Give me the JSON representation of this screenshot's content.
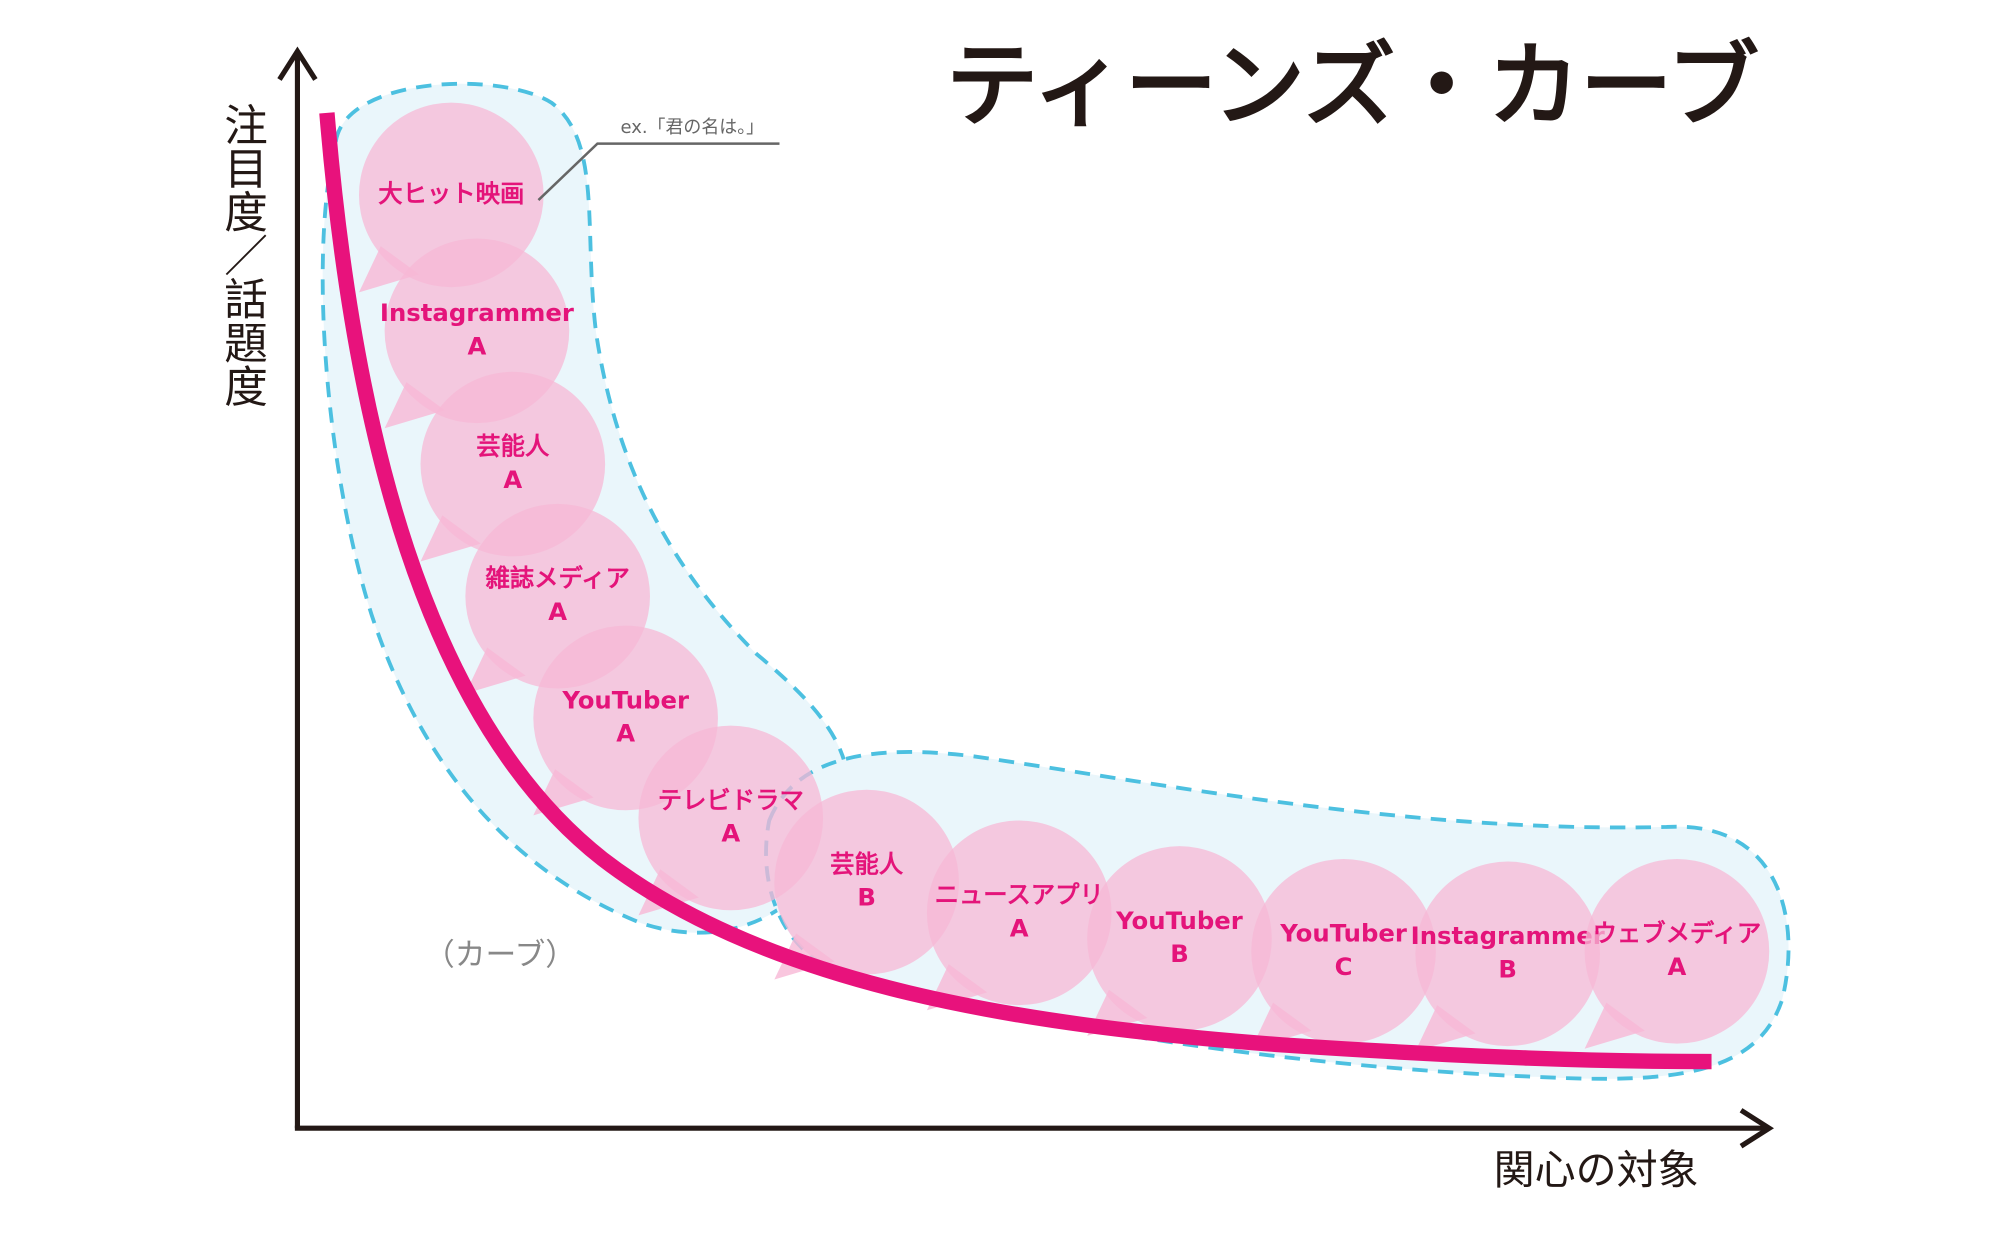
{
  "title": "ティーンズ・カーブ",
  "y_axis_label": "注目度／話題度",
  "x_axis_label": "関心の対象",
  "curve_label": "（カーブ）",
  "annotation": "ex.「君の名は。」",
  "bubbles": [
    {
      "lines": [
        "大ヒット映画"
      ]
    },
    {
      "lines": [
        "Instagrammer",
        "A"
      ]
    },
    {
      "lines": [
        "芸能人",
        "A"
      ]
    },
    {
      "lines": [
        "雑誌メディア",
        "A"
      ]
    },
    {
      "lines": [
        "YouTuber",
        "A"
      ]
    },
    {
      "lines": [
        "テレビドラマ",
        "A"
      ]
    },
    {
      "lines": [
        "芸能人",
        "B"
      ]
    },
    {
      "lines": [
        "ニュースアプリ",
        "A"
      ]
    },
    {
      "lines": [
        "YouTuber",
        "B"
      ]
    },
    {
      "lines": [
        "YouTuber",
        "C"
      ]
    },
    {
      "lines": [
        "Instagrammer",
        "B"
      ]
    },
    {
      "lines": [
        "ウェブメディア",
        "A"
      ]
    }
  ]
}
